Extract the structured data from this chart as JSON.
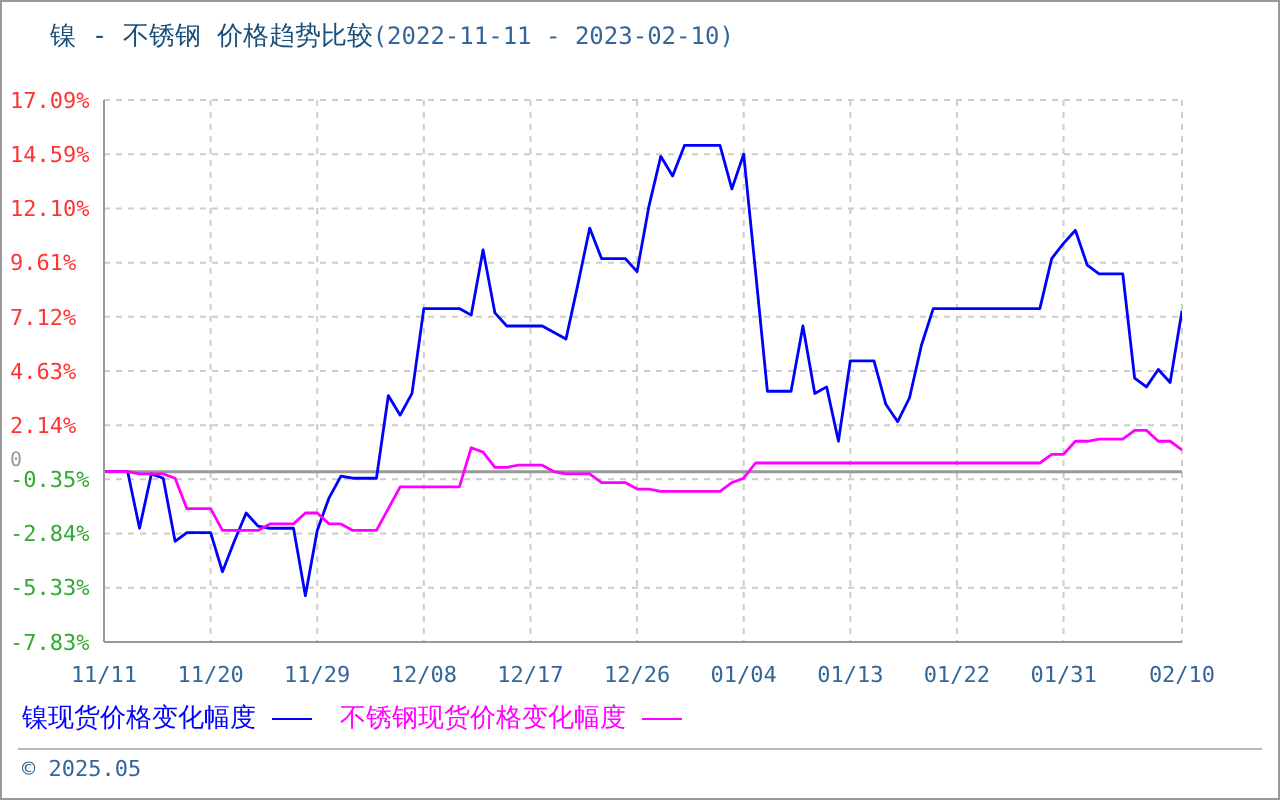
{
  "chart_data": {
    "type": "line",
    "title": "镍 - 不锈钢 价格趋势比较",
    "subtitle": "(2022-11-11 - 2023-02-10)",
    "x": [
      "2022-11-11",
      "2022-11-12",
      "2022-11-13",
      "2022-11-14",
      "2022-11-15",
      "2022-11-16",
      "2022-11-17",
      "2022-11-18",
      "2022-11-19",
      "2022-11-20",
      "2022-11-21",
      "2022-11-22",
      "2022-11-23",
      "2022-11-24",
      "2022-11-25",
      "2022-11-26",
      "2022-11-27",
      "2022-11-28",
      "2022-11-29",
      "2022-11-30",
      "2022-12-01",
      "2022-12-02",
      "2022-12-03",
      "2022-12-04",
      "2022-12-05",
      "2022-12-06",
      "2022-12-07",
      "2022-12-08",
      "2022-12-09",
      "2022-12-10",
      "2022-12-11",
      "2022-12-12",
      "2022-12-13",
      "2022-12-14",
      "2022-12-15",
      "2022-12-16",
      "2022-12-17",
      "2022-12-18",
      "2022-12-19",
      "2022-12-20",
      "2022-12-21",
      "2022-12-22",
      "2022-12-23",
      "2022-12-24",
      "2022-12-25",
      "2022-12-26",
      "2022-12-27",
      "2022-12-28",
      "2022-12-29",
      "2022-12-30",
      "2022-12-31",
      "2023-01-01",
      "2023-01-02",
      "2023-01-03",
      "2023-01-04",
      "2023-01-05",
      "2023-01-06",
      "2023-01-07",
      "2023-01-08",
      "2023-01-09",
      "2023-01-10",
      "2023-01-11",
      "2023-01-12",
      "2023-01-13",
      "2023-01-14",
      "2023-01-15",
      "2023-01-16",
      "2023-01-17",
      "2023-01-18",
      "2023-01-19",
      "2023-01-20",
      "2023-01-21",
      "2023-01-22",
      "2023-01-23",
      "2023-01-24",
      "2023-01-25",
      "2023-01-26",
      "2023-01-27",
      "2023-01-28",
      "2023-01-29",
      "2023-01-30",
      "2023-01-31",
      "2023-02-01",
      "2023-02-02",
      "2023-02-03",
      "2023-02-04",
      "2023-02-05",
      "2023-02-06",
      "2023-02-07",
      "2023-02-08",
      "2023-02-09",
      "2023-02-10"
    ],
    "xlim": [
      "2022-11-11",
      "2023-02-10"
    ],
    "xticks": [
      {
        "value": "2022-11-11",
        "label": "11/11"
      },
      {
        "value": "2022-11-20",
        "label": "11/20"
      },
      {
        "value": "2022-11-29",
        "label": "11/29"
      },
      {
        "value": "2022-12-08",
        "label": "12/08"
      },
      {
        "value": "2022-12-17",
        "label": "12/17"
      },
      {
        "value": "2022-12-26",
        "label": "12/26"
      },
      {
        "value": "2023-01-04",
        "label": "01/04"
      },
      {
        "value": "2023-01-13",
        "label": "01/13"
      },
      {
        "value": "2023-01-22",
        "label": "01/22"
      },
      {
        "value": "2023-01-31",
        "label": "01/31"
      },
      {
        "value": "2023-02-10",
        "label": "02/10"
      }
    ],
    "ylim": [
      -7.83,
      17.09
    ],
    "yticks": [
      {
        "value": -7.83,
        "label": "-7.83%"
      },
      {
        "value": -5.33,
        "label": "-5.33%"
      },
      {
        "value": -2.84,
        "label": "-2.84%"
      },
      {
        "value": -0.35,
        "label": "-0.35%"
      },
      {
        "value": 2.14,
        "label": "2.14%"
      },
      {
        "value": 4.63,
        "label": "4.63%"
      },
      {
        "value": 7.12,
        "label": "7.12%"
      },
      {
        "value": 9.61,
        "label": "9.61%"
      },
      {
        "value": 12.1,
        "label": "12.10%"
      },
      {
        "value": 14.59,
        "label": "14.59%"
      },
      {
        "value": 17.09,
        "label": "17.09%"
      }
    ],
    "grid": true,
    "legend": "bottom",
    "marker": "none",
    "line_style": "solid",
    "ref_lines": [
      {
        "axis": "y",
        "value": 0,
        "label": "0",
        "color": "#999999"
      }
    ],
    "annotations": [
      "© 2025.05"
    ],
    "series": [
      {
        "name": "镍现货价格变化幅度",
        "color": "#0000ff",
        "values": [
          0,
          0,
          0,
          -2.6,
          -0.1,
          -0.3,
          -3.2,
          -2.8,
          -2.8,
          -2.8,
          -4.6,
          -3.2,
          -1.9,
          -2.5,
          -2.6,
          -2.6,
          -2.6,
          -5.7,
          -2.7,
          -1.2,
          -0.2,
          -0.3,
          -0.3,
          -0.3,
          3.5,
          2.6,
          3.6,
          7.5,
          7.5,
          7.5,
          7.5,
          7.2,
          10.2,
          7.3,
          6.7,
          6.7,
          6.7,
          6.7,
          6.4,
          6.1,
          8.6,
          11.2,
          9.8,
          9.8,
          9.8,
          9.2,
          12.2,
          14.5,
          13.6,
          15.0,
          15.0,
          15.0,
          15.0,
          13.0,
          14.6,
          9.2,
          3.7,
          3.7,
          3.7,
          6.7,
          3.6,
          3.9,
          1.4,
          5.1,
          5.1,
          5.1,
          3.1,
          2.3,
          3.4,
          5.8,
          7.5,
          7.5,
          7.5,
          7.5,
          7.5,
          7.5,
          7.5,
          7.5,
          7.5,
          7.5,
          9.8,
          10.5,
          11.1,
          9.5,
          9.1,
          9.1,
          9.1,
          4.3,
          3.9,
          4.7,
          4.1,
          7.4
        ]
      },
      {
        "name": "不锈钢现货价格变化幅度",
        "color": "#ff00ff",
        "values": [
          0,
          0,
          0,
          -0.1,
          -0.1,
          -0.1,
          -0.3,
          -1.7,
          -1.7,
          -1.7,
          -2.7,
          -2.7,
          -2.7,
          -2.7,
          -2.4,
          -2.4,
          -2.4,
          -1.9,
          -1.9,
          -2.4,
          -2.4,
          -2.7,
          -2.7,
          -2.7,
          -1.7,
          -0.7,
          -0.7,
          -0.7,
          -0.7,
          -0.7,
          -0.7,
          1.1,
          0.9,
          0.2,
          0.2,
          0.3,
          0.3,
          0.3,
          0.0,
          -0.1,
          -0.1,
          -0.1,
          -0.5,
          -0.5,
          -0.5,
          -0.8,
          -0.8,
          -0.9,
          -0.9,
          -0.9,
          -0.9,
          -0.9,
          -0.9,
          -0.5,
          -0.3,
          0.4,
          0.4,
          0.4,
          0.4,
          0.4,
          0.4,
          0.4,
          0.4,
          0.4,
          0.4,
          0.4,
          0.4,
          0.4,
          0.4,
          0.4,
          0.4,
          0.4,
          0.4,
          0.4,
          0.4,
          0.4,
          0.4,
          0.4,
          0.4,
          0.4,
          0.8,
          0.8,
          1.4,
          1.4,
          1.5,
          1.5,
          1.5,
          1.9,
          1.9,
          1.4,
          1.4,
          1.0
        ]
      }
    ]
  }
}
